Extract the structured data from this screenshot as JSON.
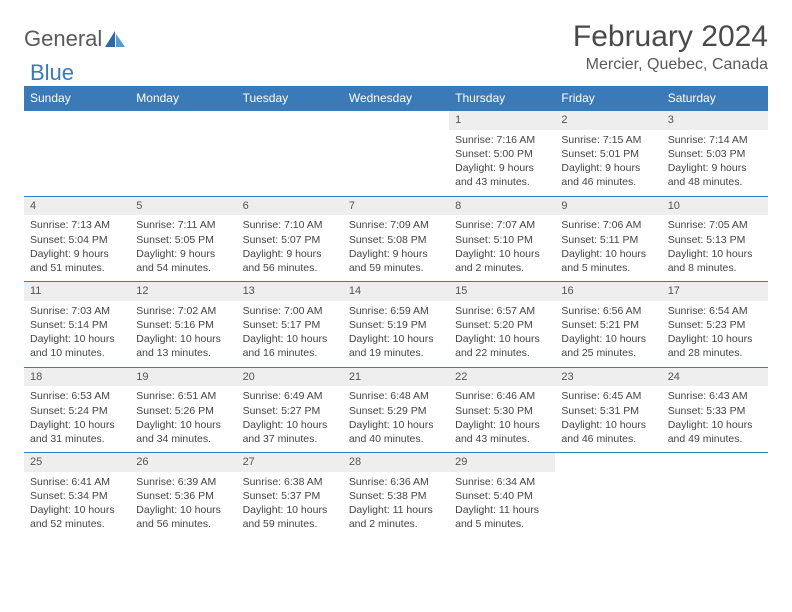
{
  "logo": {
    "general": "General",
    "blue": "Blue",
    "icon_fill": "#2f6aa8",
    "icon_fill_light": "#5a9ad4"
  },
  "title": "February 2024",
  "location": "Mercier, Quebec, Canada",
  "colors": {
    "header_bg": "#3a7ab8",
    "header_text": "#ffffff",
    "daynum_bg": "#eeeeee",
    "border": "#3a7ab8",
    "text": "#444444"
  },
  "weekdays": [
    "Sunday",
    "Monday",
    "Tuesday",
    "Wednesday",
    "Thursday",
    "Friday",
    "Saturday"
  ],
  "weeks": [
    {
      "nums": [
        "",
        "",
        "",
        "",
        "1",
        "2",
        "3"
      ],
      "cells": [
        null,
        null,
        null,
        null,
        {
          "sunrise": "Sunrise: 7:16 AM",
          "sunset": "Sunset: 5:00 PM",
          "dl1": "Daylight: 9 hours",
          "dl2": "and 43 minutes."
        },
        {
          "sunrise": "Sunrise: 7:15 AM",
          "sunset": "Sunset: 5:01 PM",
          "dl1": "Daylight: 9 hours",
          "dl2": "and 46 minutes."
        },
        {
          "sunrise": "Sunrise: 7:14 AM",
          "sunset": "Sunset: 5:03 PM",
          "dl1": "Daylight: 9 hours",
          "dl2": "and 48 minutes."
        }
      ]
    },
    {
      "nums": [
        "4",
        "5",
        "6",
        "7",
        "8",
        "9",
        "10"
      ],
      "cells": [
        {
          "sunrise": "Sunrise: 7:13 AM",
          "sunset": "Sunset: 5:04 PM",
          "dl1": "Daylight: 9 hours",
          "dl2": "and 51 minutes."
        },
        {
          "sunrise": "Sunrise: 7:11 AM",
          "sunset": "Sunset: 5:05 PM",
          "dl1": "Daylight: 9 hours",
          "dl2": "and 54 minutes."
        },
        {
          "sunrise": "Sunrise: 7:10 AM",
          "sunset": "Sunset: 5:07 PM",
          "dl1": "Daylight: 9 hours",
          "dl2": "and 56 minutes."
        },
        {
          "sunrise": "Sunrise: 7:09 AM",
          "sunset": "Sunset: 5:08 PM",
          "dl1": "Daylight: 9 hours",
          "dl2": "and 59 minutes."
        },
        {
          "sunrise": "Sunrise: 7:07 AM",
          "sunset": "Sunset: 5:10 PM",
          "dl1": "Daylight: 10 hours",
          "dl2": "and 2 minutes."
        },
        {
          "sunrise": "Sunrise: 7:06 AM",
          "sunset": "Sunset: 5:11 PM",
          "dl1": "Daylight: 10 hours",
          "dl2": "and 5 minutes."
        },
        {
          "sunrise": "Sunrise: 7:05 AM",
          "sunset": "Sunset: 5:13 PM",
          "dl1": "Daylight: 10 hours",
          "dl2": "and 8 minutes."
        }
      ]
    },
    {
      "nums": [
        "11",
        "12",
        "13",
        "14",
        "15",
        "16",
        "17"
      ],
      "cells": [
        {
          "sunrise": "Sunrise: 7:03 AM",
          "sunset": "Sunset: 5:14 PM",
          "dl1": "Daylight: 10 hours",
          "dl2": "and 10 minutes."
        },
        {
          "sunrise": "Sunrise: 7:02 AM",
          "sunset": "Sunset: 5:16 PM",
          "dl1": "Daylight: 10 hours",
          "dl2": "and 13 minutes."
        },
        {
          "sunrise": "Sunrise: 7:00 AM",
          "sunset": "Sunset: 5:17 PM",
          "dl1": "Daylight: 10 hours",
          "dl2": "and 16 minutes."
        },
        {
          "sunrise": "Sunrise: 6:59 AM",
          "sunset": "Sunset: 5:19 PM",
          "dl1": "Daylight: 10 hours",
          "dl2": "and 19 minutes."
        },
        {
          "sunrise": "Sunrise: 6:57 AM",
          "sunset": "Sunset: 5:20 PM",
          "dl1": "Daylight: 10 hours",
          "dl2": "and 22 minutes."
        },
        {
          "sunrise": "Sunrise: 6:56 AM",
          "sunset": "Sunset: 5:21 PM",
          "dl1": "Daylight: 10 hours",
          "dl2": "and 25 minutes."
        },
        {
          "sunrise": "Sunrise: 6:54 AM",
          "sunset": "Sunset: 5:23 PM",
          "dl1": "Daylight: 10 hours",
          "dl2": "and 28 minutes."
        }
      ]
    },
    {
      "nums": [
        "18",
        "19",
        "20",
        "21",
        "22",
        "23",
        "24"
      ],
      "cells": [
        {
          "sunrise": "Sunrise: 6:53 AM",
          "sunset": "Sunset: 5:24 PM",
          "dl1": "Daylight: 10 hours",
          "dl2": "and 31 minutes."
        },
        {
          "sunrise": "Sunrise: 6:51 AM",
          "sunset": "Sunset: 5:26 PM",
          "dl1": "Daylight: 10 hours",
          "dl2": "and 34 minutes."
        },
        {
          "sunrise": "Sunrise: 6:49 AM",
          "sunset": "Sunset: 5:27 PM",
          "dl1": "Daylight: 10 hours",
          "dl2": "and 37 minutes."
        },
        {
          "sunrise": "Sunrise: 6:48 AM",
          "sunset": "Sunset: 5:29 PM",
          "dl1": "Daylight: 10 hours",
          "dl2": "and 40 minutes."
        },
        {
          "sunrise": "Sunrise: 6:46 AM",
          "sunset": "Sunset: 5:30 PM",
          "dl1": "Daylight: 10 hours",
          "dl2": "and 43 minutes."
        },
        {
          "sunrise": "Sunrise: 6:45 AM",
          "sunset": "Sunset: 5:31 PM",
          "dl1": "Daylight: 10 hours",
          "dl2": "and 46 minutes."
        },
        {
          "sunrise": "Sunrise: 6:43 AM",
          "sunset": "Sunset: 5:33 PM",
          "dl1": "Daylight: 10 hours",
          "dl2": "and 49 minutes."
        }
      ]
    },
    {
      "nums": [
        "25",
        "26",
        "27",
        "28",
        "29",
        "",
        ""
      ],
      "cells": [
        {
          "sunrise": "Sunrise: 6:41 AM",
          "sunset": "Sunset: 5:34 PM",
          "dl1": "Daylight: 10 hours",
          "dl2": "and 52 minutes."
        },
        {
          "sunrise": "Sunrise: 6:39 AM",
          "sunset": "Sunset: 5:36 PM",
          "dl1": "Daylight: 10 hours",
          "dl2": "and 56 minutes."
        },
        {
          "sunrise": "Sunrise: 6:38 AM",
          "sunset": "Sunset: 5:37 PM",
          "dl1": "Daylight: 10 hours",
          "dl2": "and 59 minutes."
        },
        {
          "sunrise": "Sunrise: 6:36 AM",
          "sunset": "Sunset: 5:38 PM",
          "dl1": "Daylight: 11 hours",
          "dl2": "and 2 minutes."
        },
        {
          "sunrise": "Sunrise: 6:34 AM",
          "sunset": "Sunset: 5:40 PM",
          "dl1": "Daylight: 11 hours",
          "dl2": "and 5 minutes."
        },
        null,
        null
      ]
    }
  ]
}
